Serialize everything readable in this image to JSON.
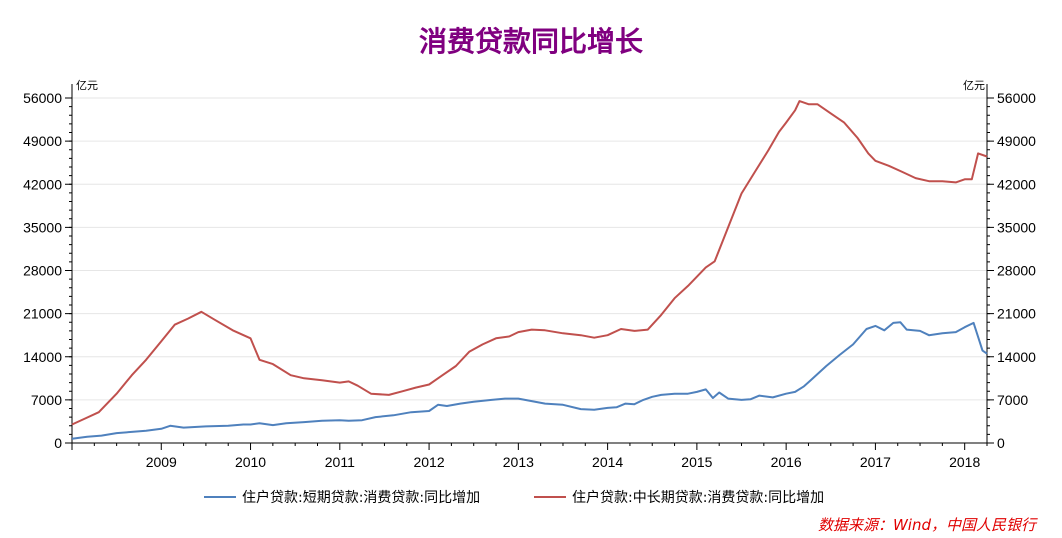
{
  "colors": {
    "title": "#800080",
    "series_short": "#4f81bd",
    "series_long": "#c0504d",
    "source": "#e00000"
  },
  "source_note": "数据来源：Wind，中国人民银行",
  "chart_data": {
    "type": "line",
    "title": "消费贷款同比增长",
    "y_unit_left": "亿元",
    "y_unit_right": "亿元",
    "ylim": [
      0,
      56000
    ],
    "yticks": [
      0,
      7000,
      14000,
      21000,
      28000,
      35000,
      42000,
      49000,
      56000
    ],
    "ytick_labels": [
      "0",
      "7000",
      "14000",
      "21000",
      "28000",
      "35000",
      "42000",
      "49000",
      "56000"
    ],
    "xlim": [
      2008.0,
      2018.25
    ],
    "xticks": [
      2009,
      2010,
      2011,
      2012,
      2013,
      2014,
      2015,
      2016,
      2017,
      2018
    ],
    "xtick_labels": [
      "2009",
      "2010",
      "2011",
      "2012",
      "2013",
      "2014",
      "2015",
      "2016",
      "2017",
      "2018"
    ],
    "grid": true,
    "legend_position": "bottom",
    "series": [
      {
        "name": "住户贷款:短期贷款:消费贷款:同比增加",
        "color": "#4f81bd",
        "points": [
          [
            2008.0,
            700
          ],
          [
            2008.17,
            1000
          ],
          [
            2008.33,
            1200
          ],
          [
            2008.5,
            1600
          ],
          [
            2008.67,
            1800
          ],
          [
            2008.83,
            2000
          ],
          [
            2009.0,
            2300
          ],
          [
            2009.1,
            2800
          ],
          [
            2009.25,
            2500
          ],
          [
            2009.5,
            2700
          ],
          [
            2009.75,
            2800
          ],
          [
            2009.92,
            3000
          ],
          [
            2010.0,
            3000
          ],
          [
            2010.1,
            3200
          ],
          [
            2010.25,
            2900
          ],
          [
            2010.4,
            3200
          ],
          [
            2010.6,
            3400
          ],
          [
            2010.8,
            3600
          ],
          [
            2011.0,
            3700
          ],
          [
            2011.1,
            3600
          ],
          [
            2011.25,
            3700
          ],
          [
            2011.4,
            4200
          ],
          [
            2011.6,
            4500
          ],
          [
            2011.8,
            5000
          ],
          [
            2012.0,
            5200
          ],
          [
            2012.1,
            6200
          ],
          [
            2012.2,
            6000
          ],
          [
            2012.35,
            6400
          ],
          [
            2012.5,
            6700
          ],
          [
            2012.7,
            7000
          ],
          [
            2012.85,
            7200
          ],
          [
            2013.0,
            7200
          ],
          [
            2013.15,
            6800
          ],
          [
            2013.3,
            6400
          ],
          [
            2013.5,
            6200
          ],
          [
            2013.7,
            5500
          ],
          [
            2013.85,
            5400
          ],
          [
            2014.0,
            5700
          ],
          [
            2014.1,
            5800
          ],
          [
            2014.2,
            6400
          ],
          [
            2014.3,
            6300
          ],
          [
            2014.4,
            7000
          ],
          [
            2014.5,
            7500
          ],
          [
            2014.6,
            7800
          ],
          [
            2014.75,
            8000
          ],
          [
            2014.9,
            8000
          ],
          [
            2015.0,
            8300
          ],
          [
            2015.1,
            8700
          ],
          [
            2015.18,
            7300
          ],
          [
            2015.25,
            8200
          ],
          [
            2015.35,
            7200
          ],
          [
            2015.5,
            7000
          ],
          [
            2015.6,
            7100
          ],
          [
            2015.7,
            7700
          ],
          [
            2015.85,
            7400
          ],
          [
            2016.0,
            8000
          ],
          [
            2016.1,
            8300
          ],
          [
            2016.2,
            9200
          ],
          [
            2016.3,
            10500
          ],
          [
            2016.45,
            12500
          ],
          [
            2016.6,
            14300
          ],
          [
            2016.75,
            16000
          ],
          [
            2016.9,
            18500
          ],
          [
            2017.0,
            19000
          ],
          [
            2017.1,
            18300
          ],
          [
            2017.2,
            19500
          ],
          [
            2017.28,
            19600
          ],
          [
            2017.35,
            18400
          ],
          [
            2017.5,
            18200
          ],
          [
            2017.6,
            17500
          ],
          [
            2017.75,
            17800
          ],
          [
            2017.9,
            18000
          ],
          [
            2018.0,
            18800
          ],
          [
            2018.1,
            19500
          ],
          [
            2018.2,
            15000
          ],
          [
            2018.25,
            14500
          ]
        ]
      },
      {
        "name": "住户贷款:中长期贷款:消费贷款:同比增加",
        "color": "#c0504d",
        "points": [
          [
            2008.0,
            3000
          ],
          [
            2008.15,
            4000
          ],
          [
            2008.3,
            5000
          ],
          [
            2008.5,
            8000
          ],
          [
            2008.67,
            11000
          ],
          [
            2008.83,
            13500
          ],
          [
            2009.0,
            16500
          ],
          [
            2009.15,
            19200
          ],
          [
            2009.3,
            20200
          ],
          [
            2009.45,
            21300
          ],
          [
            2009.6,
            20000
          ],
          [
            2009.8,
            18300
          ],
          [
            2010.0,
            17000
          ],
          [
            2010.1,
            13500
          ],
          [
            2010.25,
            12800
          ],
          [
            2010.45,
            11000
          ],
          [
            2010.6,
            10500
          ],
          [
            2010.8,
            10200
          ],
          [
            2011.0,
            9800
          ],
          [
            2011.1,
            10000
          ],
          [
            2011.2,
            9300
          ],
          [
            2011.35,
            8000
          ],
          [
            2011.55,
            7800
          ],
          [
            2011.7,
            8400
          ],
          [
            2011.85,
            9000
          ],
          [
            2012.0,
            9500
          ],
          [
            2012.15,
            11000
          ],
          [
            2012.3,
            12500
          ],
          [
            2012.45,
            14800
          ],
          [
            2012.6,
            16000
          ],
          [
            2012.75,
            17000
          ],
          [
            2012.9,
            17300
          ],
          [
            2013.0,
            18000
          ],
          [
            2013.15,
            18400
          ],
          [
            2013.3,
            18300
          ],
          [
            2013.5,
            17800
          ],
          [
            2013.7,
            17500
          ],
          [
            2013.85,
            17100
          ],
          [
            2014.0,
            17500
          ],
          [
            2014.15,
            18500
          ],
          [
            2014.3,
            18200
          ],
          [
            2014.45,
            18400
          ],
          [
            2014.6,
            20800
          ],
          [
            2014.75,
            23500
          ],
          [
            2014.9,
            25500
          ],
          [
            2015.0,
            27000
          ],
          [
            2015.1,
            28500
          ],
          [
            2015.2,
            29500
          ],
          [
            2015.35,
            35000
          ],
          [
            2015.5,
            40500
          ],
          [
            2015.65,
            44000
          ],
          [
            2015.8,
            47500
          ],
          [
            2015.92,
            50500
          ],
          [
            2016.0,
            52000
          ],
          [
            2016.1,
            54000
          ],
          [
            2016.15,
            55500
          ],
          [
            2016.25,
            55000
          ],
          [
            2016.35,
            55000
          ],
          [
            2016.5,
            53500
          ],
          [
            2016.65,
            52000
          ],
          [
            2016.8,
            49500
          ],
          [
            2016.92,
            47000
          ],
          [
            2017.0,
            45800
          ],
          [
            2017.15,
            45000
          ],
          [
            2017.3,
            44000
          ],
          [
            2017.45,
            43000
          ],
          [
            2017.6,
            42500
          ],
          [
            2017.75,
            42500
          ],
          [
            2017.9,
            42300
          ],
          [
            2018.0,
            42800
          ],
          [
            2018.08,
            42800
          ],
          [
            2018.15,
            47000
          ],
          [
            2018.25,
            46500
          ]
        ]
      }
    ]
  }
}
